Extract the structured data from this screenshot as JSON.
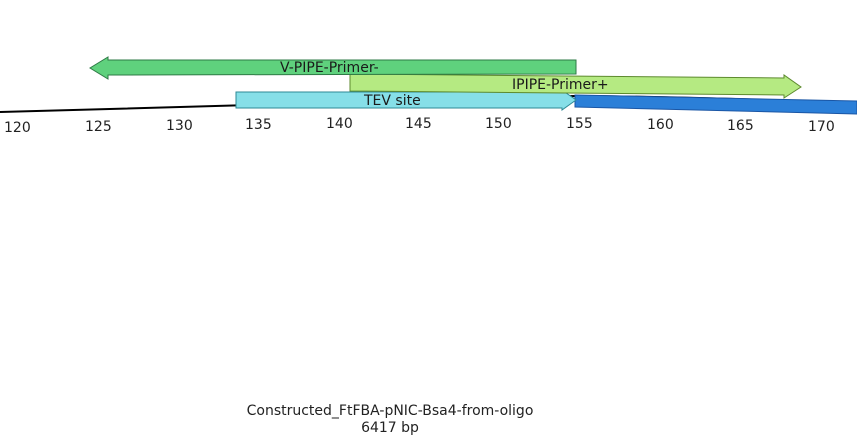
{
  "construct": {
    "name": "Constructed_FtFBA-pNIC-Bsa4-from-oligo",
    "length": "6417 bp"
  },
  "ruler": {
    "ticks": [
      "120",
      "125",
      "130",
      "135",
      "140",
      "145",
      "150",
      "155",
      "160",
      "165",
      "170"
    ]
  },
  "features": [
    {
      "id": "v-pipe-primer",
      "label": "V-PIPE-Primer-",
      "start": 123.5,
      "end": 154.6,
      "direction": "reverse",
      "color": "#5fd17d"
    },
    {
      "id": "ipipe-primer",
      "label": "IPIPE-Primer+",
      "start": 140.5,
      "end": 168.2,
      "direction": "forward",
      "color": "#b5ea82"
    },
    {
      "id": "tev-site",
      "label": "TEV site",
      "start": 133.4,
      "end": 154.6,
      "direction": "forward",
      "color": "#86dfe8"
    },
    {
      "id": "cds-segment",
      "label": "",
      "start": 154.6,
      "end": 175.0,
      "direction": "none",
      "color": "#2b7fd8"
    }
  ]
}
